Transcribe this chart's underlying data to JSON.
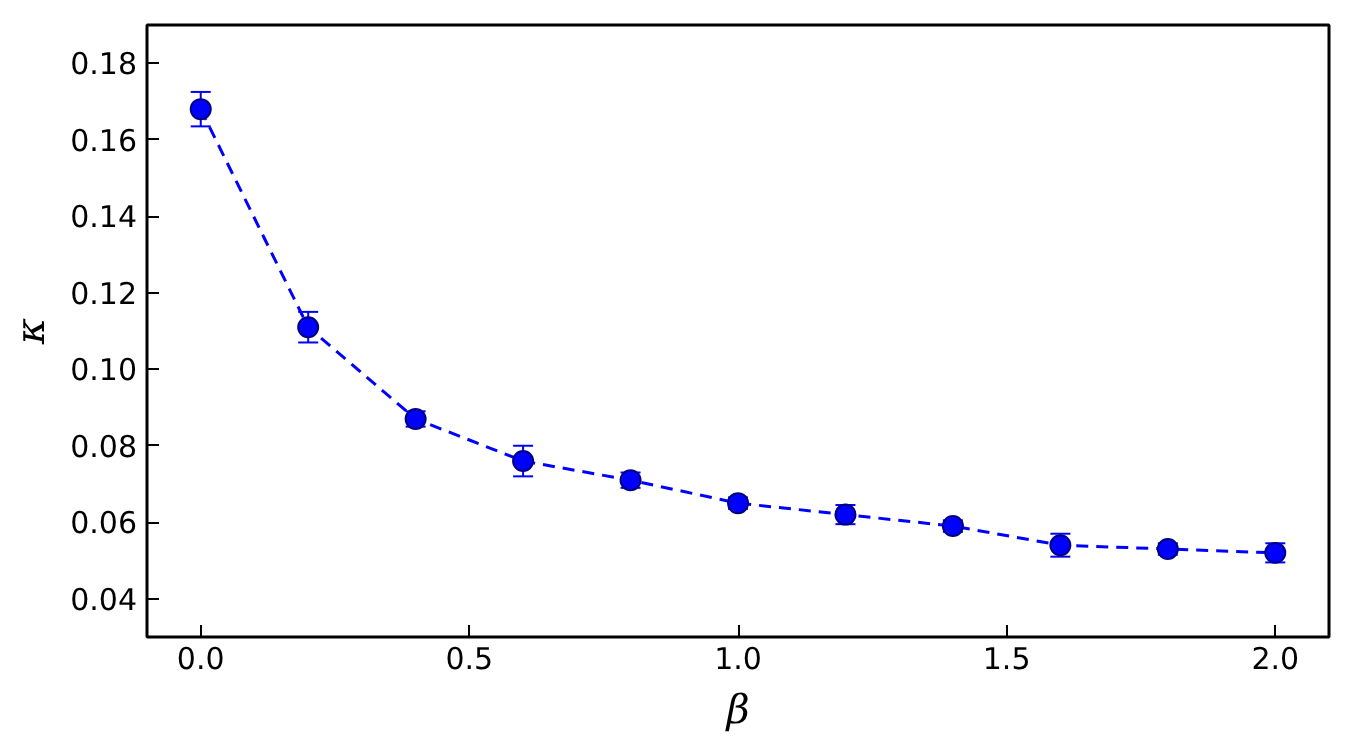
{
  "chart_data": {
    "type": "line",
    "xlabel": "β",
    "ylabel": "κ",
    "x": [
      0.0,
      0.2,
      0.4,
      0.6,
      0.8,
      1.0,
      1.2,
      1.4,
      1.6,
      1.8,
      2.0
    ],
    "series": [
      {
        "color": "#0000ff",
        "values": [
          0.168,
          0.111,
          0.087,
          0.076,
          0.071,
          0.065,
          0.062,
          0.059,
          0.054,
          0.053,
          0.052
        ],
        "errors": [
          0.0045,
          0.004,
          0.002,
          0.004,
          0.002,
          0.0015,
          0.0025,
          0.0015,
          0.003,
          0.0015,
          0.0025
        ]
      }
    ],
    "marker": "circle",
    "line_style": "dashed",
    "grid": false,
    "xlim": [
      -0.1,
      2.1
    ],
    "ylim": [
      0.03,
      0.19
    ],
    "xticks": [
      {
        "value": 0.0,
        "label": "0.0"
      },
      0.5,
      {
        "value": 1.0,
        "label": "1.0"
      },
      1.5,
      {
        "value": 2.0,
        "label": "2.0"
      }
    ],
    "yticks": [
      0.04,
      0.06,
      0.08,
      {
        "value": 0.1,
        "label": "0.10"
      },
      0.12,
      0.14,
      0.16,
      0.18
    ]
  }
}
